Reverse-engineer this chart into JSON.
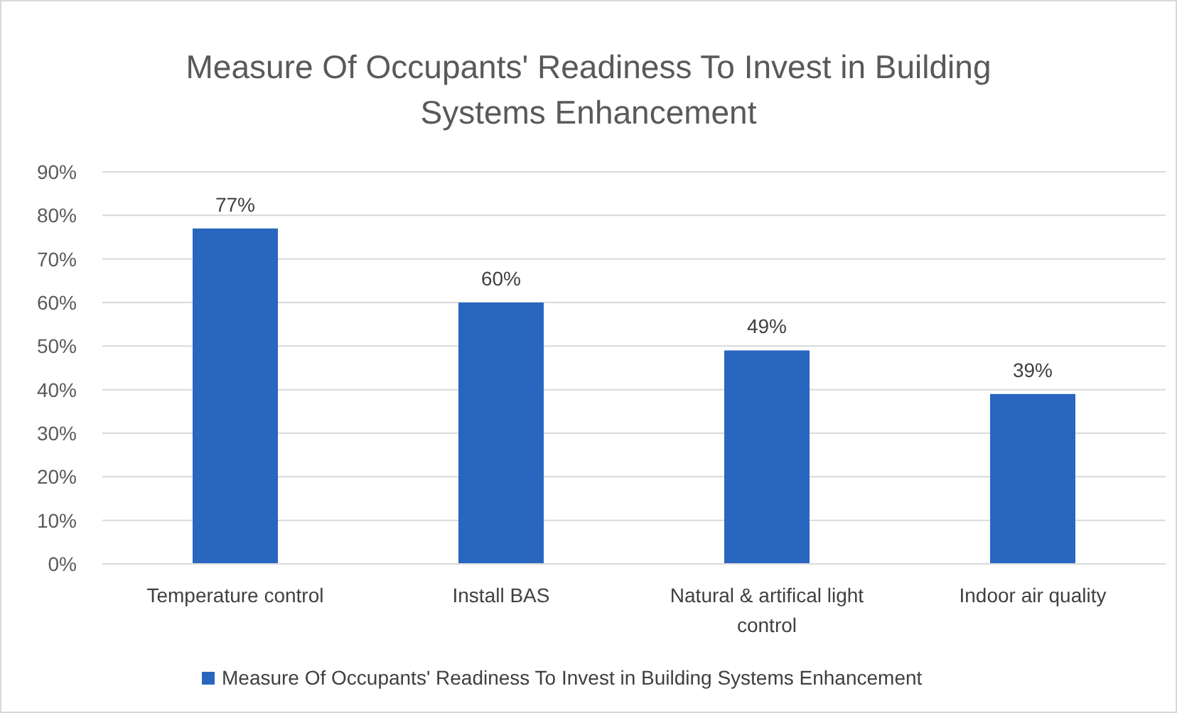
{
  "chart_data": {
    "type": "bar",
    "title": "Measure Of Occupants' Readiness To Invest in Building Systems Enhancement",
    "categories": [
      "Temperature control",
      "Install BAS",
      "Natural & artifical light control",
      "Indoor air quality"
    ],
    "series": [
      {
        "name": "Measure Of Occupants' Readiness To Invest in Building Systems Enhancement",
        "color": "#2866c0",
        "values": [
          77,
          60,
          49,
          39
        ],
        "value_labels": [
          "77%",
          "60%",
          "49%",
          "39%"
        ]
      }
    ],
    "ylim": [
      0,
      90
    ],
    "yticks": [
      {
        "value": 0,
        "label": "0%"
      },
      {
        "value": 10,
        "label": "10%"
      },
      {
        "value": 20,
        "label": "20%"
      },
      {
        "value": 30,
        "label": "30%"
      },
      {
        "value": 40,
        "label": "40%"
      },
      {
        "value": 50,
        "label": "50%"
      },
      {
        "value": 60,
        "label": "60%"
      },
      {
        "value": 70,
        "label": "70%"
      },
      {
        "value": 80,
        "label": "80%"
      },
      {
        "value": 90,
        "label": "90%"
      }
    ],
    "grid": "y",
    "legend": "bottom"
  }
}
